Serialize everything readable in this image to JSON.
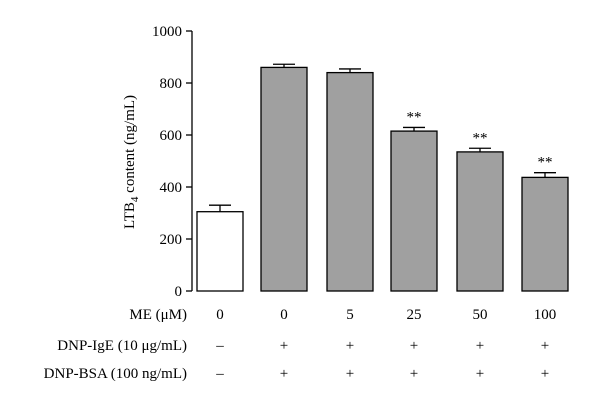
{
  "chart_data": {
    "type": "bar",
    "ylabel": "LTB4 content (ng/mL)",
    "ylabel_main": "LTB",
    "ylabel_sub": "4",
    "ylabel_rest": " content (ng/mL)",
    "ylim": [
      0,
      1000
    ],
    "yticks": [
      "0",
      "200",
      "400",
      "600",
      "800",
      "1000"
    ],
    "grid": false,
    "bars": [
      {
        "value": 305,
        "error": 25,
        "color": "#ffffff",
        "sig": ""
      },
      {
        "value": 860,
        "error": 12,
        "color": "#a0a0a0",
        "sig": ""
      },
      {
        "value": 840,
        "error": 14,
        "color": "#a0a0a0",
        "sig": ""
      },
      {
        "value": 615,
        "error": 14,
        "color": "#a0a0a0",
        "sig": "**"
      },
      {
        "value": 535,
        "error": 14,
        "color": "#a0a0a0",
        "sig": "**"
      },
      {
        "value": 437,
        "error": 18,
        "color": "#a0a0a0",
        "sig": "**"
      }
    ],
    "condition_rows": [
      {
        "label": "ME (μM)",
        "values": [
          "0",
          "0",
          "5",
          "25",
          "50",
          "100"
        ]
      },
      {
        "label": "DNP-IgE (10 μg/mL)",
        "values": [
          "–",
          "+",
          "+",
          "+",
          "+",
          "+"
        ]
      },
      {
        "label": "DNP-BSA (100 ng/mL)",
        "values": [
          "–",
          "+",
          "+",
          "+",
          "+",
          "+"
        ]
      }
    ]
  }
}
